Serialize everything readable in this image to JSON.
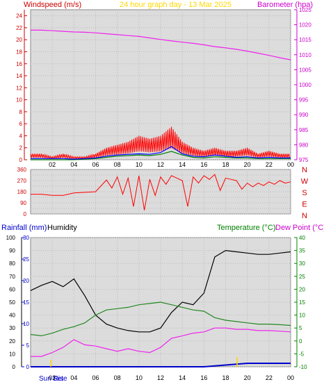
{
  "header": {
    "left_label": "Windspeed (m/s)",
    "center_label": "24 hour graph day - 13 Mar 2025",
    "right_label": "Barometer (hpa)"
  },
  "bottom_header": {
    "rainfall_label": "Rainfall (mm)",
    "humidity_label": "Humidity",
    "temperature_label": "Temperature (°C)",
    "dewpoint_label": "Dew Point (°C)"
  },
  "sun_labels": {
    "rise": "Sun Rise",
    "set": "Set"
  },
  "colors": {
    "windspeed": "#ff0000",
    "wind_avg": "#0000ff",
    "wind_green": "#008000",
    "barometer": "#ee22ee",
    "direction": "#ff0000",
    "rainfall": "#0000cc",
    "humidity": "#000000",
    "temperature": "#228822",
    "dewpoint": "#ee22ee",
    "plot_bg": "#dcdcdc",
    "left_axis_text": "#cc0000",
    "right_axis_text": "#cc00cc",
    "rain_axis_text": "#0000cc",
    "temp_axis_text": "#008000",
    "title_text": "#ffd700"
  },
  "chart_data": [
    {
      "type": "line",
      "panel": "wind-barometer",
      "x_ticks": [
        "02",
        "04",
        "06",
        "08",
        "10",
        "12",
        "14",
        "16",
        "18",
        "20",
        "22",
        "00"
      ],
      "ylim_left": [
        0,
        25
      ],
      "yticks_left": [
        0,
        2,
        4,
        6,
        8,
        10,
        12,
        14,
        16,
        18,
        20,
        22,
        24
      ],
      "ylim_right": [
        975,
        1025
      ],
      "yticks_right": [
        975,
        980,
        985,
        990,
        995,
        1000,
        1005,
        1010,
        1015,
        1020,
        1025
      ],
      "series": [
        {
          "name": "Barometer",
          "axis": "right",
          "x": [
            0,
            1,
            2,
            3,
            4,
            5,
            6,
            7,
            8,
            9,
            10,
            11,
            12,
            13,
            14,
            15,
            16,
            17,
            18,
            19,
            20,
            21,
            22,
            23,
            24
          ],
          "values": [
            1018.2,
            1018.2,
            1018.0,
            1017.8,
            1017.6,
            1017.5,
            1017.3,
            1017.0,
            1016.7,
            1016.4,
            1016.1,
            1015.6,
            1015.1,
            1014.6,
            1014.2,
            1013.8,
            1013.3,
            1012.7,
            1012.3,
            1011.8,
            1011.2,
            1010.5,
            1009.8,
            1009.0,
            1008.3
          ]
        },
        {
          "name": "Windspeed",
          "axis": "left",
          "x": [
            0,
            1,
            2,
            3,
            4,
            5,
            6,
            7,
            8,
            9,
            10,
            11,
            12,
            13,
            14,
            15,
            16,
            17,
            18,
            19,
            20,
            21,
            22,
            23,
            24
          ],
          "values": [
            1,
            1,
            0.5,
            1,
            0.5,
            0.5,
            1,
            2,
            2.5,
            3,
            4,
            3.5,
            4,
            5.5,
            3,
            2,
            1.5,
            2,
            1.5,
            1.5,
            2,
            1,
            1.5,
            1,
            1
          ]
        },
        {
          "name": "Wind average",
          "axis": "left",
          "x": [
            0,
            1,
            2,
            3,
            4,
            5,
            6,
            7,
            8,
            9,
            10,
            11,
            12,
            13,
            14,
            15,
            16,
            17,
            18,
            19,
            20,
            21,
            22,
            23,
            24
          ],
          "values": [
            0.2,
            0.2,
            0.2,
            0.2,
            0.1,
            0.2,
            0.3,
            0.6,
            0.8,
            0.9,
            1.0,
            0.9,
            1.2,
            2.2,
            1.0,
            0.6,
            0.5,
            0.8,
            0.6,
            0.4,
            0.5,
            0.3,
            0.4,
            0.3,
            0.3
          ]
        },
        {
          "name": "Wind green",
          "axis": "left",
          "x": [
            0,
            1,
            2,
            3,
            4,
            5,
            6,
            7,
            8,
            9,
            10,
            11,
            12,
            13,
            14,
            15,
            16,
            17,
            18,
            19,
            20,
            21,
            22,
            23,
            24
          ],
          "values": [
            0.0,
            0.0,
            0.0,
            0.0,
            0.0,
            0.1,
            0.2,
            0.4,
            0.6,
            0.7,
            0.8,
            0.7,
            0.9,
            1.4,
            0.8,
            0.4,
            0.3,
            0.5,
            0.4,
            0.3,
            0.3,
            0.2,
            0.2,
            0.2,
            0.2
          ]
        }
      ]
    },
    {
      "type": "line",
      "panel": "wind-direction",
      "x_ticks": [
        "02",
        "04",
        "06",
        "08",
        "10",
        "12",
        "14",
        "16",
        "18",
        "20",
        "22",
        "00"
      ],
      "ylim": [
        0,
        360
      ],
      "yticks": [
        0,
        45,
        90,
        135,
        180,
        225,
        270,
        315,
        360
      ],
      "ytick_labels": [
        "0",
        "",
        "90",
        "",
        "180",
        "",
        "270",
        "",
        "360"
      ],
      "compass_labels": [
        "N",
        "W",
        "S",
        "E",
        "N"
      ],
      "series": [
        {
          "name": "Wind direction",
          "x": [
            0,
            1,
            2,
            3,
            4,
            5,
            6,
            7,
            7.5,
            8,
            8.5,
            9,
            9.5,
            10,
            10.5,
            11,
            11.5,
            12,
            12.5,
            13,
            13.5,
            14,
            14.5,
            15,
            15.5,
            16,
            16.5,
            17,
            17.5,
            18,
            18.5,
            19,
            19.5,
            20,
            20.5,
            21,
            21.5,
            22,
            22.5,
            23,
            23.5,
            24
          ],
          "values": [
            160,
            160,
            150,
            150,
            170,
            175,
            180,
            275,
            210,
            300,
            160,
            290,
            60,
            310,
            30,
            280,
            150,
            300,
            240,
            310,
            290,
            270,
            60,
            300,
            250,
            310,
            280,
            320,
            190,
            290,
            280,
            270,
            200,
            250,
            220,
            250,
            230,
            260,
            240,
            270,
            250,
            260
          ]
        }
      ]
    },
    {
      "type": "line",
      "panel": "temperature-humidity",
      "x_ticks": [
        "02",
        "04",
        "06",
        "08",
        "10",
        "12",
        "14",
        "16",
        "18",
        "20",
        "22",
        "00"
      ],
      "ylim_humidity": [
        0,
        100
      ],
      "yticks_humidity": [
        0,
        10,
        20,
        30,
        40,
        50,
        60,
        70,
        80,
        90,
        100
      ],
      "ylim_rainfall": [
        0,
        30
      ],
      "yticks_rainfall": [
        0,
        5,
        10,
        15,
        20,
        25,
        30
      ],
      "ylim_temperature": [
        -10,
        40
      ],
      "yticks_temperature": [
        -10,
        -5,
        0,
        5,
        10,
        15,
        20,
        25,
        30,
        35,
        40
      ],
      "series": [
        {
          "name": "Humidity",
          "axis": "humidity",
          "x": [
            0,
            1,
            2,
            3,
            4,
            5,
            6,
            7,
            8,
            9,
            10,
            11,
            12,
            13,
            14,
            15,
            16,
            17,
            18,
            19,
            20,
            21,
            22,
            23,
            24
          ],
          "values": [
            59,
            63,
            66,
            62,
            68,
            55,
            40,
            33,
            30,
            28,
            27,
            27,
            30,
            42,
            50,
            48,
            57,
            85,
            90,
            89,
            88,
            87,
            87,
            88,
            89
          ]
        },
        {
          "name": "Temperature",
          "axis": "temperature",
          "x": [
            0,
            1,
            2,
            3,
            4,
            5,
            6,
            7,
            8,
            9,
            10,
            11,
            12,
            13,
            14,
            15,
            16,
            17,
            18,
            19,
            20,
            21,
            22,
            23,
            24
          ],
          "values": [
            2.5,
            2.0,
            3.0,
            4.5,
            5.5,
            7.0,
            10.0,
            12.0,
            12.5,
            13.0,
            14.0,
            14.5,
            15.0,
            14.0,
            13.0,
            12.0,
            11.5,
            9.0,
            8.0,
            7.5,
            7.0,
            6.5,
            6.5,
            6.3,
            6.0
          ]
        },
        {
          "name": "Dew Point",
          "axis": "temperature",
          "x": [
            0,
            1,
            2,
            3,
            4,
            5,
            6,
            7,
            8,
            9,
            10,
            11,
            12,
            13,
            14,
            15,
            16,
            17,
            18,
            19,
            20,
            21,
            22,
            23,
            24
          ],
          "values": [
            -6.0,
            -6.0,
            -4.5,
            -2.5,
            0.5,
            -1.5,
            -2.0,
            -3.0,
            -4.0,
            -3.0,
            -4.0,
            -4.5,
            -2.5,
            1.0,
            2.0,
            3.0,
            3.5,
            5.0,
            5.0,
            4.5,
            4.5,
            4.0,
            4.0,
            3.8,
            3.5
          ]
        },
        {
          "name": "Rainfall",
          "axis": "rainfall",
          "x": [
            0,
            1,
            2,
            3,
            4,
            5,
            6,
            7,
            8,
            9,
            10,
            11,
            12,
            13,
            14,
            15,
            16,
            17,
            18,
            19,
            20,
            21,
            22,
            23,
            24
          ],
          "values": [
            0,
            0,
            0,
            0,
            0,
            0,
            0,
            0,
            0,
            0,
            0,
            0,
            0,
            0,
            0,
            0,
            0,
            0.2,
            0.4,
            0.6,
            0.8,
            0.8,
            0.8,
            0.8,
            0.8
          ]
        }
      ]
    }
  ]
}
